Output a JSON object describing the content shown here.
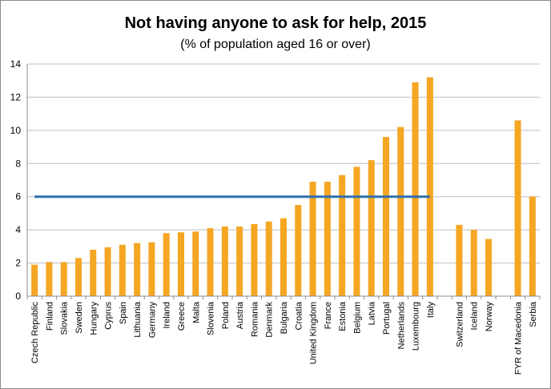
{
  "chart_data": {
    "type": "bar",
    "title": "Not having anyone to ask for help, 2015",
    "subtitle": "(% of population aged 16 or over)",
    "xlabel": "",
    "ylabel": "",
    "ylim": [
      0,
      14
    ],
    "yticks": [
      0,
      2,
      4,
      6,
      8,
      10,
      12,
      14
    ],
    "grid": true,
    "legend": "none",
    "categories": [
      "Czech Republic",
      "Finland",
      "Slovakia",
      "Sweden",
      "Hungary",
      "Cyprus",
      "Spain",
      "Lithuania",
      "Germany",
      "Ireland",
      "Greece",
      "Malta",
      "Slovenia",
      "Poland",
      "Austria",
      "Romania",
      "Denmark",
      "Bulgaria",
      "Croatia",
      "United Kingdom",
      "France",
      "Estonia",
      "Belgium",
      "Latvia",
      "Portugal",
      "Netherlands",
      "Luxembourg",
      "Italy",
      "",
      "Switzerland",
      "Iceland",
      "Norway",
      "",
      "FYR of Macedonia",
      "Serbia"
    ],
    "values": [
      1.9,
      2.05,
      2.05,
      2.3,
      2.8,
      2.95,
      3.1,
      3.2,
      3.25,
      3.8,
      3.85,
      3.9,
      4.1,
      4.2,
      4.2,
      4.35,
      4.5,
      4.7,
      5.5,
      6.9,
      6.9,
      7.3,
      7.8,
      8.2,
      9.6,
      10.2,
      12.9,
      13.2,
      null,
      4.3,
      4.0,
      3.45,
      null,
      10.6,
      6.0
    ],
    "reference_line": {
      "value": 6.0,
      "from_category": "Czech Republic",
      "to_category": "Italy"
    },
    "colors": {
      "bar": "#F5A623",
      "reference": "#2E6FB0",
      "grid": "#BFBFBF",
      "axis": "#8C8C8C"
    }
  }
}
